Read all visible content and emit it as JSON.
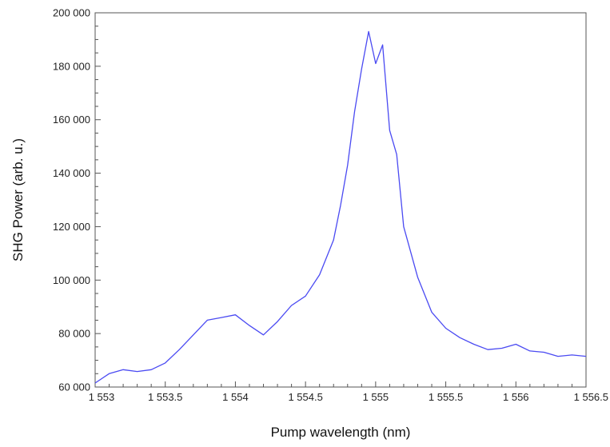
{
  "chart_data": {
    "type": "line",
    "xlabel": "Pump wavelength (nm)",
    "ylabel": "SHG Power (arb. u.)",
    "xlim": [
      1553,
      1556.5
    ],
    "ylim": [
      60000,
      200000
    ],
    "x_ticks": [
      1553,
      1553.5,
      1554,
      1554.5,
      1555,
      1555.5,
      1556,
      1556.5
    ],
    "x_tick_labels": [
      "1 553",
      "1 553.5",
      "1 554",
      "1 554.5",
      "1 555",
      "1 555.5",
      "1 556",
      "1 556.5"
    ],
    "y_ticks": [
      60000,
      80000,
      100000,
      120000,
      140000,
      160000,
      180000,
      200000
    ],
    "y_tick_labels": [
      "60 000",
      "80 000",
      "100 000",
      "120 000",
      "140 000",
      "160 000",
      "180 000",
      "200 000"
    ],
    "grid": false,
    "line_color": "#4a4af2",
    "series": [
      {
        "x": [
          1553.0,
          1553.1,
          1553.2,
          1553.3,
          1553.4,
          1553.5,
          1553.6,
          1553.7,
          1553.8,
          1553.9,
          1554.0,
          1554.1,
          1554.2,
          1554.3,
          1554.4,
          1554.5,
          1554.6,
          1554.7,
          1554.75,
          1554.8,
          1554.85,
          1554.9,
          1554.95,
          1555.0,
          1555.05,
          1555.1,
          1555.15,
          1555.2,
          1555.3,
          1555.4,
          1555.5,
          1555.6,
          1555.7,
          1555.8,
          1555.9,
          1556.0,
          1556.1,
          1556.2,
          1556.3,
          1556.4,
          1556.5
        ],
        "y": [
          61500,
          65000,
          66500,
          65800,
          66500,
          69000,
          74000,
          79500,
          85000,
          86000,
          87000,
          83000,
          79500,
          84500,
          90500,
          94000,
          102000,
          115000,
          128000,
          143000,
          163000,
          179000,
          193000,
          181000,
          188000,
          156000,
          147000,
          120000,
          101000,
          88000,
          82000,
          78500,
          76000,
          74000,
          74500,
          76000,
          73500,
          73000,
          71500,
          72000,
          71500
        ]
      }
    ]
  }
}
